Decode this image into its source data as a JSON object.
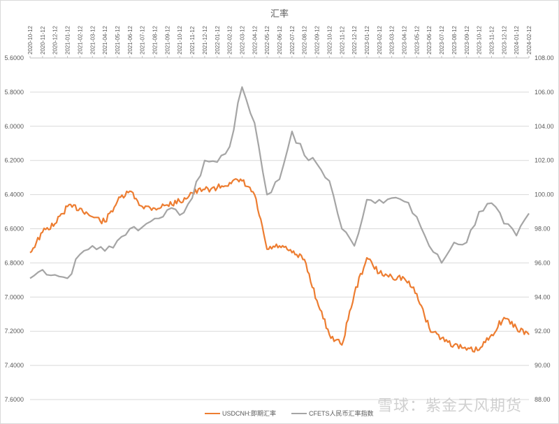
{
  "chart_data": {
    "type": "line",
    "title": "汇率",
    "x_labels": [
      "2020-10-12",
      "2020-11-12",
      "2020-12-12",
      "2021-01-12",
      "2021-02-12",
      "2021-03-12",
      "2021-04-12",
      "2021-05-12",
      "2021-06-12",
      "2021-07-12",
      "2021-08-12",
      "2021-09-12",
      "2021-10-12",
      "2021-11-12",
      "2021-12-12",
      "2022-01-12",
      "2022-02-12",
      "2022-03-12",
      "2022-04-12",
      "2022-05-12",
      "2022-06-12",
      "2022-07-12",
      "2022-08-12",
      "2022-09-12",
      "2022-10-12",
      "2022-11-12",
      "2022-12-12",
      "2023-01-12",
      "2023-02-12",
      "2023-03-12",
      "2023-04-12",
      "2023-05-12",
      "2023-06-12",
      "2023-07-12",
      "2023-08-12",
      "2023-09-12",
      "2023-10-12",
      "2023-11-12",
      "2023-12-12",
      "2024-01-12",
      "2024-02-12"
    ],
    "x_axis_position": "top",
    "y_left": {
      "label": "USDCNH:即期汇率",
      "ticks": [
        "5.6000",
        "5.8000",
        "6.0000",
        "6.2000",
        "6.4000",
        "6.6000",
        "6.8000",
        "7.0000",
        "7.2000",
        "7.4000",
        "7.6000"
      ],
      "range": [
        5.6,
        7.6
      ],
      "inverted": true
    },
    "y_right": {
      "label": "CFETS人民币汇率指数",
      "ticks": [
        "108.00",
        "106.00",
        "104.00",
        "102.00",
        "100.00",
        "98.00",
        "96.00",
        "94.00",
        "92.00",
        "90.00",
        "88.00"
      ],
      "range": [
        88,
        108
      ]
    },
    "grid": true,
    "legend_position": "bottom",
    "series": [
      {
        "name": "USDCNH:即期汇率",
        "color": "#ed7d31",
        "axis": "left",
        "values": [
          6.74,
          6.62,
          6.57,
          6.47,
          6.48,
          6.53,
          6.56,
          6.44,
          6.38,
          6.47,
          6.48,
          6.46,
          6.44,
          6.39,
          6.37,
          6.36,
          6.33,
          6.32,
          6.4,
          6.72,
          6.7,
          6.74,
          6.78,
          7.02,
          7.22,
          7.28,
          6.98,
          6.77,
          6.86,
          6.88,
          6.89,
          6.98,
          7.18,
          7.24,
          7.28,
          7.31,
          7.31,
          7.22,
          7.12,
          7.18,
          7.22
        ]
      },
      {
        "name": "CFETS人民币汇率指数",
        "color": "#a5a5a5",
        "axis": "right",
        "values": [
          95.1,
          95.6,
          95.3,
          95.1,
          96.5,
          97.0,
          96.7,
          97.3,
          98.0,
          98.1,
          98.6,
          99.1,
          98.8,
          99.8,
          102.0,
          101.9,
          102.8,
          106.3,
          104.2,
          100.0,
          100.9,
          103.7,
          102.3,
          101.8,
          100.8,
          98.0,
          97.0,
          99.7,
          99.7,
          99.8,
          99.6,
          98.7,
          97.0,
          96.0,
          97.2,
          97.2,
          99.0,
          99.5,
          98.3,
          97.6,
          98.9
        ]
      }
    ]
  },
  "title": "汇率",
  "legend": [
    {
      "label": "USDCNH:即期汇率",
      "color": "#ed7d31"
    },
    {
      "label": "CFETS人民币汇率指数",
      "color": "#a5a5a5"
    }
  ],
  "watermark": "雪球：紫金天风期货"
}
